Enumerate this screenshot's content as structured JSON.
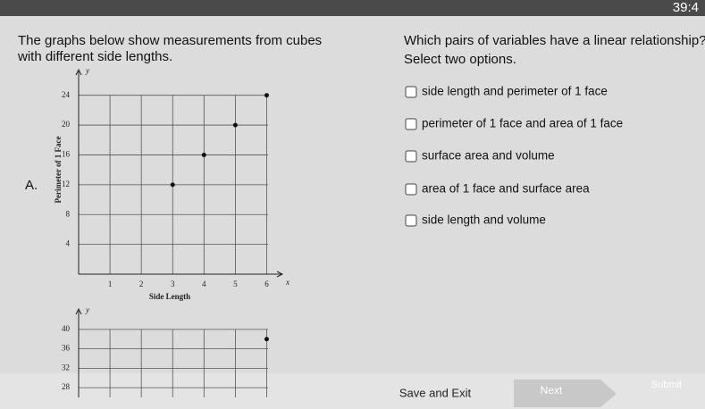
{
  "timer": "39:4",
  "prompt": [
    "The graphs below show measurements from cubes",
    "with different side lengths."
  ],
  "question": {
    "text": "Which pairs of variables have a linear relationship?",
    "instruction": "Select two options.",
    "options": [
      "side length and perimeter of 1 face",
      "perimeter of 1 face and area of 1 face",
      "surface area and volume",
      "area of 1 face and surface area",
      "side length and volume"
    ]
  },
  "graphs": [
    {
      "label": "A.",
      "x_label": "Side Length",
      "y_label": "Perimeter of 1 Face",
      "x_axis_letter": "x",
      "y_axis_letter": "y",
      "xlim": [
        0,
        6.5
      ],
      "ylim": [
        0,
        26
      ],
      "xticks": [
        1,
        2,
        3,
        4,
        5,
        6
      ],
      "yticks": [
        4,
        8,
        12,
        16,
        20,
        24
      ],
      "x": [
        3,
        4,
        5,
        6
      ],
      "y": [
        12,
        16,
        20,
        24
      ]
    },
    {
      "y_axis_letter": "y",
      "ylim": [
        26,
        42
      ],
      "yticks": [
        28,
        32,
        36,
        40
      ],
      "xlim": [
        0,
        6.5
      ],
      "xgrid": [
        1,
        2,
        3,
        4,
        5,
        6
      ],
      "x": [
        6
      ],
      "y": [
        38
      ]
    }
  ],
  "buttons": [
    "Save and Exit",
    "Next",
    "Submit"
  ]
}
